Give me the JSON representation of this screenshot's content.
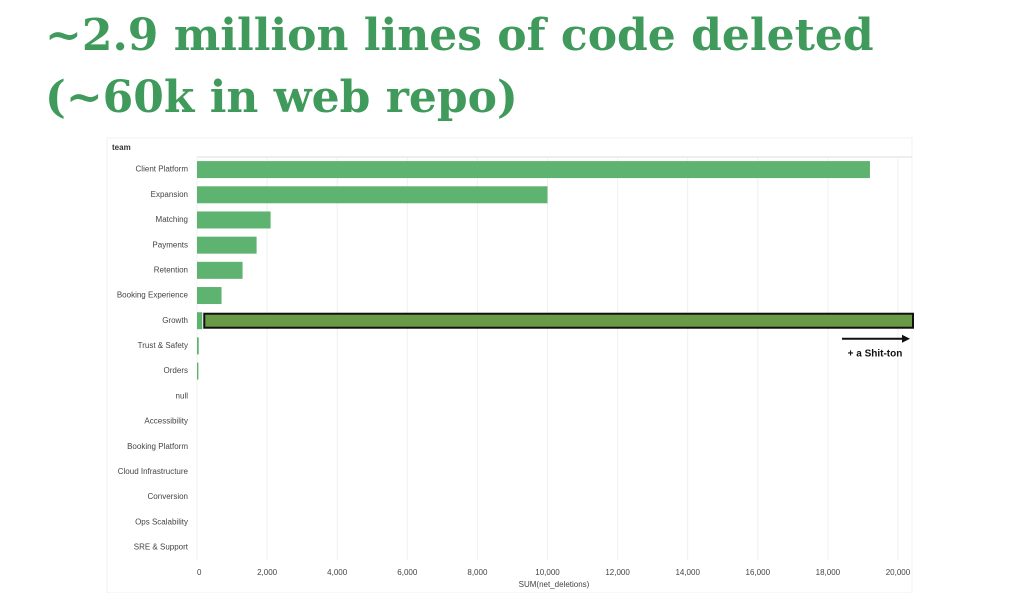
{
  "chart_data": {
    "type": "barh",
    "title": [
      "~2.9 million lines of code deleted",
      "(~60k in web repo)"
    ],
    "y_label": "team",
    "x_label": "SUM(net_deletions)",
    "annotation": "+ a Shit-ton",
    "categories": [
      "Client Platform",
      "Expansion",
      "Matching",
      "Payments",
      "Retention",
      "Booking Experience",
      "Growth",
      "Trust & Safety",
      "Orders",
      "null",
      "Accessibility",
      "Booking Platform",
      "Cloud Infrastructure",
      "Conversion",
      "Ops Scalability",
      "SRE & Support"
    ],
    "values": [
      19200,
      10000,
      2100,
      1700,
      1300,
      700,
      150,
      50,
      40,
      0,
      0,
      0,
      0,
      0,
      0,
      0
    ],
    "color": "#5fb370",
    "highlight": "Growth",
    "highlight_color": "#6a9a48",
    "xlim": [
      0,
      20400
    ],
    "xticks": [
      0,
      {
        "value": 2000,
        "label": "2,000"
      },
      {
        "value": 4000,
        "label": "4,000"
      },
      {
        "value": 6000,
        "label": "6,000"
      },
      {
        "value": 8000,
        "label": "8,000"
      },
      {
        "value": 10000,
        "label": "10,000"
      },
      {
        "value": 12000,
        "label": "12,000"
      },
      {
        "value": 14000,
        "label": "14,000"
      },
      {
        "value": 16000,
        "label": "16,000"
      },
      {
        "value": 18000,
        "label": "18,000"
      },
      {
        "value": 20000,
        "label": "20,000"
      }
    ],
    "grid": true
  }
}
